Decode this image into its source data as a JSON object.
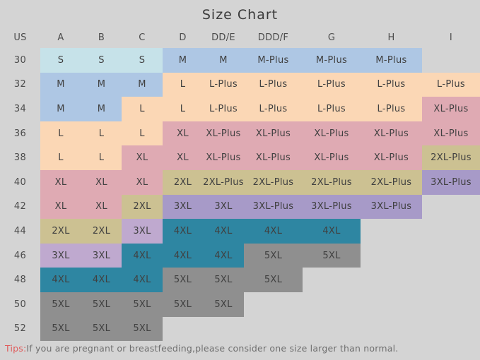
{
  "title": "Size Chart",
  "colors": {
    "cyan": "#c6e2e9",
    "blue": "#aec7e4",
    "peach": "#fbd7b5",
    "pink": "#dfaab3",
    "olive": "#ccc192",
    "purple": "#a79ac8",
    "lilac": "#bfa9cf",
    "teal": "#2e86a2",
    "gray": "#8f8f8f",
    "background": "#d4d4d4",
    "tips_accent": "#e05c5c"
  },
  "chart_data": {
    "type": "table",
    "title": "Size Chart",
    "columns": [
      "US",
      "A",
      "B",
      "C",
      "D",
      "DD/E",
      "DDD/F",
      "G",
      "H",
      "I"
    ],
    "rows": [
      {
        "us": "30",
        "cells": [
          {
            "v": "S",
            "c": "cyan"
          },
          {
            "v": "S",
            "c": "cyan"
          },
          {
            "v": "S",
            "c": "cyan"
          },
          {
            "v": "M",
            "c": "blue"
          },
          {
            "v": "M",
            "c": "blue"
          },
          {
            "v": "M-Plus",
            "c": "blue"
          },
          {
            "v": "M-Plus",
            "c": "blue"
          },
          {
            "v": "M-Plus",
            "c": "blue"
          },
          {
            "v": "",
            "c": ""
          }
        ]
      },
      {
        "us": "32",
        "cells": [
          {
            "v": "M",
            "c": "blue"
          },
          {
            "v": "M",
            "c": "blue"
          },
          {
            "v": "M",
            "c": "blue"
          },
          {
            "v": "L",
            "c": "peach"
          },
          {
            "v": "L-Plus",
            "c": "peach"
          },
          {
            "v": "L-Plus",
            "c": "peach"
          },
          {
            "v": "L-Plus",
            "c": "peach"
          },
          {
            "v": "L-Plus",
            "c": "peach"
          },
          {
            "v": "L-Plus",
            "c": "peach"
          }
        ]
      },
      {
        "us": "34",
        "cells": [
          {
            "v": "M",
            "c": "blue"
          },
          {
            "v": "M",
            "c": "blue"
          },
          {
            "v": "L",
            "c": "peach"
          },
          {
            "v": "L",
            "c": "peach"
          },
          {
            "v": "L-Plus",
            "c": "peach"
          },
          {
            "v": "L-Plus",
            "c": "peach"
          },
          {
            "v": "L-Plus",
            "c": "peach"
          },
          {
            "v": "L-Plus",
            "c": "peach"
          },
          {
            "v": "XL-Plus",
            "c": "pink"
          }
        ]
      },
      {
        "us": "36",
        "cells": [
          {
            "v": "L",
            "c": "peach"
          },
          {
            "v": "L",
            "c": "peach"
          },
          {
            "v": "L",
            "c": "peach"
          },
          {
            "v": "XL",
            "c": "pink"
          },
          {
            "v": "XL-Plus",
            "c": "pink"
          },
          {
            "v": "XL-Plus",
            "c": "pink"
          },
          {
            "v": "XL-Plus",
            "c": "pink"
          },
          {
            "v": "XL-Plus",
            "c": "pink"
          },
          {
            "v": "XL-Plus",
            "c": "pink"
          }
        ]
      },
      {
        "us": "38",
        "cells": [
          {
            "v": "L",
            "c": "peach"
          },
          {
            "v": "L",
            "c": "peach"
          },
          {
            "v": "XL",
            "c": "pink"
          },
          {
            "v": "XL",
            "c": "pink"
          },
          {
            "v": "XL-Plus",
            "c": "pink"
          },
          {
            "v": "XL-Plus",
            "c": "pink"
          },
          {
            "v": "XL-Plus",
            "c": "pink"
          },
          {
            "v": "XL-Plus",
            "c": "pink"
          },
          {
            "v": "2XL-Plus",
            "c": "olive"
          }
        ]
      },
      {
        "us": "40",
        "cells": [
          {
            "v": "XL",
            "c": "pink"
          },
          {
            "v": "XL",
            "c": "pink"
          },
          {
            "v": "XL",
            "c": "pink"
          },
          {
            "v": "2XL",
            "c": "olive"
          },
          {
            "v": "2XL-Plus",
            "c": "olive"
          },
          {
            "v": "2XL-Plus",
            "c": "olive"
          },
          {
            "v": "2XL-Plus",
            "c": "olive"
          },
          {
            "v": "2XL-Plus",
            "c": "olive"
          },
          {
            "v": "3XL-Plus",
            "c": "purple"
          }
        ]
      },
      {
        "us": "42",
        "cells": [
          {
            "v": "XL",
            "c": "pink"
          },
          {
            "v": "XL",
            "c": "pink"
          },
          {
            "v": "2XL",
            "c": "olive"
          },
          {
            "v": "3XL",
            "c": "purple"
          },
          {
            "v": "3XL",
            "c": "purple"
          },
          {
            "v": "3XL-Plus",
            "c": "purple"
          },
          {
            "v": "3XL-Plus",
            "c": "purple"
          },
          {
            "v": "3XL-Plus",
            "c": "purple"
          },
          {
            "v": "",
            "c": ""
          }
        ]
      },
      {
        "us": "44",
        "cells": [
          {
            "v": "2XL",
            "c": "olive"
          },
          {
            "v": "2XL",
            "c": "olive"
          },
          {
            "v": "3XL",
            "c": "lilac"
          },
          {
            "v": "4XL",
            "c": "teal"
          },
          {
            "v": "4XL",
            "c": "teal"
          },
          {
            "v": "4XL",
            "c": "teal"
          },
          {
            "v": "4XL",
            "c": "teal"
          },
          {
            "v": "",
            "c": ""
          },
          {
            "v": "",
            "c": ""
          }
        ]
      },
      {
        "us": "46",
        "cells": [
          {
            "v": "3XL",
            "c": "lilac"
          },
          {
            "v": "3XL",
            "c": "lilac"
          },
          {
            "v": "4XL",
            "c": "teal"
          },
          {
            "v": "4XL",
            "c": "teal"
          },
          {
            "v": "4XL",
            "c": "teal"
          },
          {
            "v": "5XL",
            "c": "gray"
          },
          {
            "v": "5XL",
            "c": "gray"
          },
          {
            "v": "",
            "c": ""
          },
          {
            "v": "",
            "c": ""
          }
        ]
      },
      {
        "us": "48",
        "cells": [
          {
            "v": "4XL",
            "c": "teal"
          },
          {
            "v": "4XL",
            "c": "teal"
          },
          {
            "v": "4XL",
            "c": "teal"
          },
          {
            "v": "5XL",
            "c": "gray"
          },
          {
            "v": "5XL",
            "c": "gray"
          },
          {
            "v": "5XL",
            "c": "gray"
          },
          {
            "v": "",
            "c": ""
          },
          {
            "v": "",
            "c": ""
          },
          {
            "v": "",
            "c": ""
          }
        ]
      },
      {
        "us": "50",
        "cells": [
          {
            "v": "5XL",
            "c": "gray"
          },
          {
            "v": "5XL",
            "c": "gray"
          },
          {
            "v": "5XL",
            "c": "gray"
          },
          {
            "v": "5XL",
            "c": "gray"
          },
          {
            "v": "5XL",
            "c": "gray"
          },
          {
            "v": "",
            "c": ""
          },
          {
            "v": "",
            "c": ""
          },
          {
            "v": "",
            "c": ""
          },
          {
            "v": "",
            "c": ""
          }
        ]
      },
      {
        "us": "52",
        "cells": [
          {
            "v": "5XL",
            "c": "gray"
          },
          {
            "v": "5XL",
            "c": "gray"
          },
          {
            "v": "5XL",
            "c": "gray"
          },
          {
            "v": "",
            "c": ""
          },
          {
            "v": "",
            "c": ""
          },
          {
            "v": "",
            "c": ""
          },
          {
            "v": "",
            "c": ""
          },
          {
            "v": "",
            "c": ""
          },
          {
            "v": "",
            "c": ""
          }
        ]
      }
    ]
  },
  "tips": {
    "label": "Tips:",
    "text": "If you are pregnant or breastfeeding,please consider one size larger than normal."
  }
}
